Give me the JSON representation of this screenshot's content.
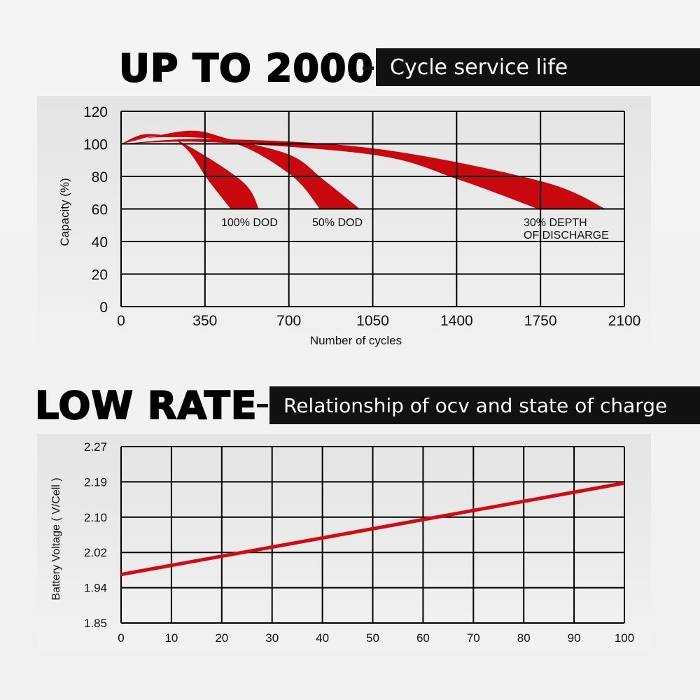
{
  "top": {
    "headline": "UP TO 2000",
    "banner": "Cycle service life"
  },
  "bottom": {
    "headline": "LOW RATE",
    "banner": "Relationship of ocv and state of charge"
  },
  "colors": {
    "band": "#c8070f",
    "line": "#d40a12",
    "grid": "#000000",
    "banner_bg": "#111111"
  },
  "chart_data": [
    {
      "type": "area",
      "xlabel": "Number of cycles",
      "ylabel": "Capacity (%)",
      "xlim": [
        0,
        2100
      ],
      "ylim": [
        0,
        120
      ],
      "xticks": [
        "0",
        "350",
        "700",
        "1050",
        "1400",
        "1750",
        "2100"
      ],
      "yticks": [
        "120",
        "100",
        "80",
        "60",
        "40",
        "20",
        "0"
      ],
      "grid": true,
      "series": [
        {
          "name": "100% DOD",
          "upper": [
            [
              0,
              100
            ],
            [
              107,
              106
            ],
            [
              250,
              101
            ],
            [
              505,
              77
            ],
            [
              575,
              60
            ]
          ],
          "lower": [
            [
              0,
              100
            ],
            [
              169,
              105
            ],
            [
              272,
              97
            ],
            [
              362,
              78
            ],
            [
              458,
              60
            ]
          ]
        },
        {
          "name": "50% DOD",
          "upper": [
            [
              0,
              100
            ],
            [
              279,
              108
            ],
            [
              450,
              103
            ],
            [
              707,
              93
            ],
            [
              844,
              78
            ],
            [
              996,
              60
            ]
          ],
          "lower": [
            [
              0,
              100
            ],
            [
              150,
              104
            ],
            [
              458,
              101
            ],
            [
              707,
              81
            ],
            [
              830,
              60
            ]
          ]
        },
        {
          "name": "30% DEPTH OF DISCHARGE",
          "label_lines": [
            "30% DEPTH",
            "OF DISCHARGE"
          ],
          "upper": [
            [
              0,
              100
            ],
            [
              375,
              103
            ],
            [
              1064,
              97
            ],
            [
              1753,
              77
            ],
            [
              2022,
              60
            ]
          ],
          "lower": [
            [
              0,
              100
            ],
            [
              375,
              101
            ],
            [
              1064,
              93
            ],
            [
              1409,
              78
            ],
            [
              1740,
              60
            ]
          ]
        }
      ]
    },
    {
      "type": "line",
      "xlabel": "",
      "ylabel": "Battery Voltage ( V/Cell )",
      "xlim": [
        0,
        100
      ],
      "xticks": [
        "0",
        "10",
        "20",
        "30",
        "40",
        "50",
        "60",
        "70",
        "80",
        "90",
        "100"
      ],
      "yticks": [
        "2.27",
        "2.19",
        "2.10",
        "2.02",
        "1.94",
        "1.85"
      ],
      "grid": true,
      "series": [
        {
          "points": [
            [
              0,
              1.97
            ],
            [
              100,
              2.187
            ]
          ]
        }
      ]
    }
  ]
}
